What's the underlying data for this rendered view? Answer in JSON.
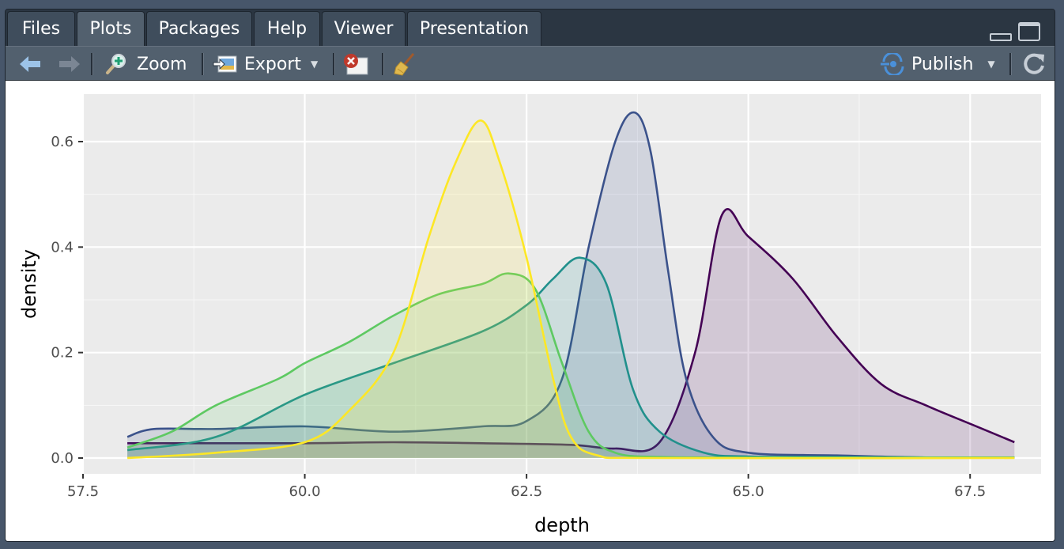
{
  "tabs": [
    {
      "label": "Files",
      "active": false
    },
    {
      "label": "Plots",
      "active": true
    },
    {
      "label": "Packages",
      "active": false
    },
    {
      "label": "Help",
      "active": false
    },
    {
      "label": "Viewer",
      "active": false
    },
    {
      "label": "Presentation",
      "active": false
    }
  ],
  "toolbar": {
    "zoom_label": "Zoom",
    "export_label": "Export",
    "publish_label": "Publish",
    "icons": [
      "back-arrow-icon",
      "forward-arrow-icon",
      "zoom-icon",
      "export-image-icon",
      "remove-plot-icon",
      "broom-icon",
      "publish-icon",
      "refresh-icon"
    ]
  },
  "chart_data": {
    "type": "area",
    "xlabel": "depth",
    "ylabel": "density",
    "xlim": [
      57.5,
      68.3
    ],
    "ylim": [
      -0.03,
      0.69
    ],
    "x_ticks": [
      57.5,
      60.0,
      62.5,
      65.0,
      67.5
    ],
    "x_tick_labels": [
      "57.5",
      "60.0",
      "62.5",
      "65.0",
      "67.5"
    ],
    "y_ticks": [
      0.0,
      0.2,
      0.4,
      0.6
    ],
    "y_tick_labels": [
      "0.0",
      "0.2",
      "0.4",
      "0.6"
    ],
    "panel_background": "#ebebeb",
    "grid": true,
    "legend": "none",
    "series": [
      {
        "color": "#440154",
        "points": [
          [
            58,
            0.028
          ],
          [
            59,
            0.028
          ],
          [
            60,
            0.028
          ],
          [
            61,
            0.03
          ],
          [
            62,
            0.028
          ],
          [
            63,
            0.025
          ],
          [
            63.5,
            0.018
          ],
          [
            64.0,
            0.03
          ],
          [
            64.4,
            0.2
          ],
          [
            64.7,
            0.46
          ],
          [
            65.0,
            0.42
          ],
          [
            65.5,
            0.34
          ],
          [
            66.0,
            0.23
          ],
          [
            66.5,
            0.14
          ],
          [
            67.0,
            0.1
          ],
          [
            67.5,
            0.065
          ],
          [
            68.0,
            0.03
          ]
        ]
      },
      {
        "color": "#3b528b",
        "points": [
          [
            58,
            0.04
          ],
          [
            58.3,
            0.055
          ],
          [
            59,
            0.055
          ],
          [
            60,
            0.06
          ],
          [
            61,
            0.05
          ],
          [
            62,
            0.06
          ],
          [
            62.5,
            0.07
          ],
          [
            62.9,
            0.15
          ],
          [
            63.2,
            0.4
          ],
          [
            63.5,
            0.6
          ],
          [
            63.72,
            0.655
          ],
          [
            63.9,
            0.58
          ],
          [
            64.1,
            0.35
          ],
          [
            64.3,
            0.15
          ],
          [
            64.6,
            0.04
          ],
          [
            65,
            0.01
          ],
          [
            66,
            0.005
          ],
          [
            67,
            0.001
          ],
          [
            68,
            0.001
          ]
        ]
      },
      {
        "color": "#21908c",
        "points": [
          [
            58,
            0.015
          ],
          [
            59,
            0.04
          ],
          [
            60,
            0.12
          ],
          [
            61,
            0.18
          ],
          [
            62,
            0.24
          ],
          [
            62.5,
            0.29
          ],
          [
            62.8,
            0.34
          ],
          [
            63.1,
            0.38
          ],
          [
            63.4,
            0.33
          ],
          [
            63.7,
            0.13
          ],
          [
            64,
            0.05
          ],
          [
            64.5,
            0.01
          ],
          [
            65,
            0.003
          ],
          [
            66,
            0.002
          ],
          [
            67,
            0.001
          ],
          [
            68,
            0.001
          ]
        ]
      },
      {
        "color": "#5ec962",
        "points": [
          [
            58,
            0.02
          ],
          [
            58.5,
            0.05
          ],
          [
            59,
            0.1
          ],
          [
            59.7,
            0.15
          ],
          [
            60,
            0.18
          ],
          [
            60.5,
            0.22
          ],
          [
            61,
            0.27
          ],
          [
            61.5,
            0.31
          ],
          [
            62,
            0.33
          ],
          [
            62.3,
            0.35
          ],
          [
            62.6,
            0.32
          ],
          [
            62.9,
            0.18
          ],
          [
            63.2,
            0.05
          ],
          [
            63.5,
            0.01
          ],
          [
            64,
            0.002
          ],
          [
            65,
            0.001
          ],
          [
            68,
            0.001
          ]
        ]
      },
      {
        "color": "#fde725",
        "points": [
          [
            58,
            0.0
          ],
          [
            59,
            0.01
          ],
          [
            60,
            0.03
          ],
          [
            60.5,
            0.09
          ],
          [
            61.0,
            0.2
          ],
          [
            61.4,
            0.42
          ],
          [
            61.7,
            0.56
          ],
          [
            61.98,
            0.64
          ],
          [
            62.2,
            0.56
          ],
          [
            62.5,
            0.38
          ],
          [
            62.8,
            0.15
          ],
          [
            63.0,
            0.04
          ],
          [
            63.3,
            0.005
          ],
          [
            64,
            0.0
          ],
          [
            68,
            0.0
          ]
        ]
      }
    ]
  }
}
